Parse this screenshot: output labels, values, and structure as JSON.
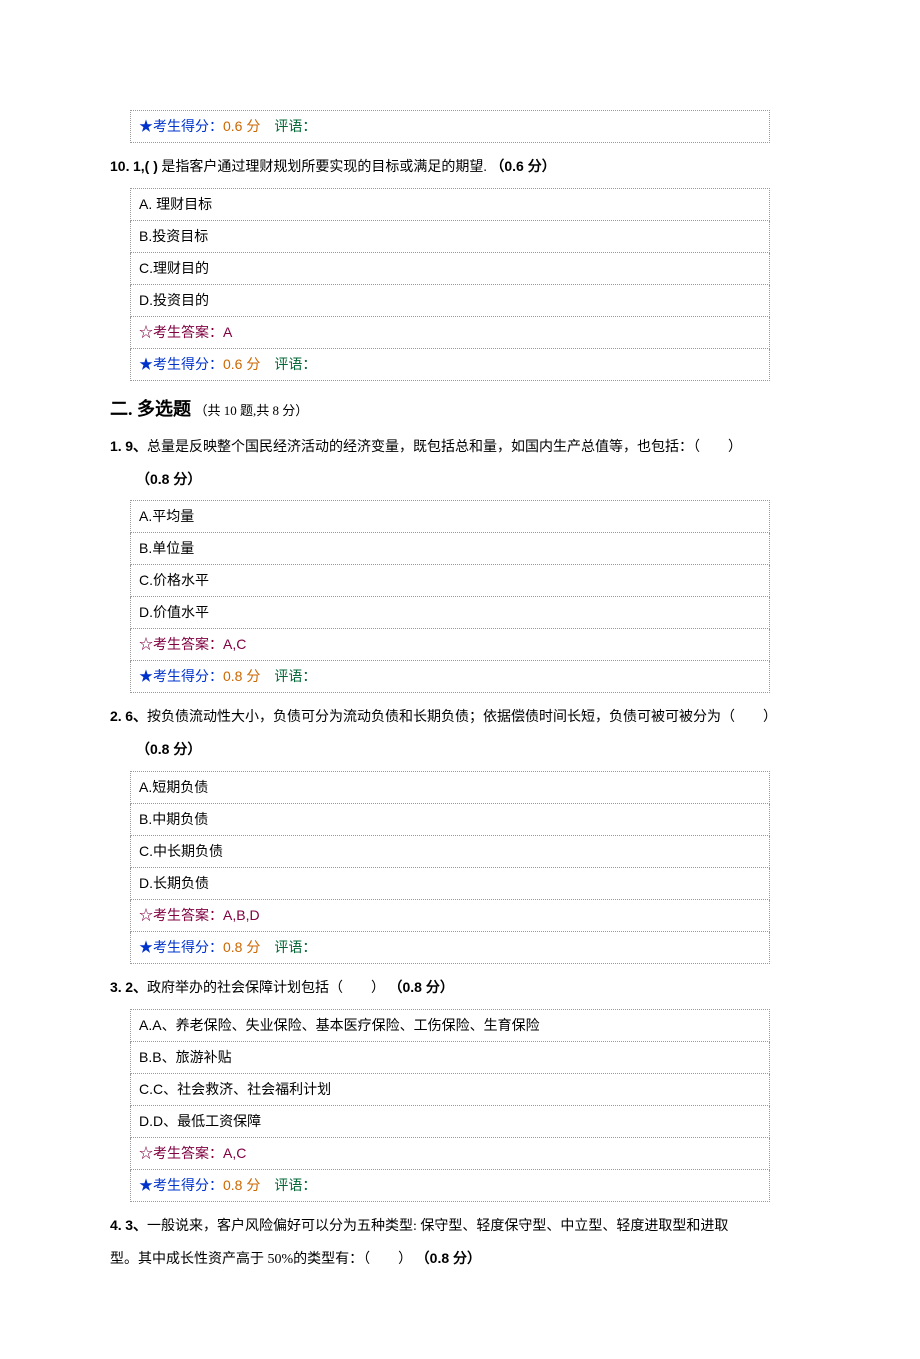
{
  "colors": {
    "text": "#000000",
    "border": "#9a9a9a",
    "answer": "#800040",
    "score_label": "#0033cc",
    "score_value": "#cc6600",
    "comment": "#006633",
    "background": "#ffffff"
  },
  "strings": {
    "star_filled": "★",
    "star_open": "☆",
    "score_prefix": "考生得分：",
    "comment_label": "评语：",
    "answer_prefix": "考生答案："
  },
  "section1_last_score": {
    "value": "0.6 分"
  },
  "q10": {
    "number": "10.",
    "subnum": "1,(   )",
    "text": "是指客户通过理财规划所要实现的目标或满足的期望.",
    "points": "（0.6 分）",
    "options": [
      {
        "letter": "A.",
        "text": " 理财目标"
      },
      {
        "letter": "B.",
        "text": "投资目标"
      },
      {
        "letter": "C.",
        "text": "理财目的"
      },
      {
        "letter": "D.",
        "text": "投资目的"
      }
    ],
    "answer": "A",
    "score": "0.6 分"
  },
  "section2": {
    "label": "二. 多选题",
    "meta": "（共 10 题,共 8 分）"
  },
  "mq1": {
    "number": "1.",
    "subnum": "9、",
    "text": "总量是反映整个国民经济活动的经济变量，既包括总和量，如国内生产总值等，也包括：（　　）",
    "points": "（0.8 分）",
    "options": [
      {
        "letter": "A.",
        "text": "平均量"
      },
      {
        "letter": "B.",
        "text": "单位量"
      },
      {
        "letter": "C.",
        "text": "价格水平"
      },
      {
        "letter": "D.",
        "text": "价值水平"
      }
    ],
    "answer": "A,C",
    "score": "0.8 分"
  },
  "mq2": {
    "number": "2.",
    "subnum": "6、",
    "text": "按负债流动性大小，负债可分为流动负债和长期负债；依据偿债时间长短，负债可被可被分为（　　）",
    "points": "（0.8 分）",
    "options": [
      {
        "letter": "A.",
        "text": "短期负债"
      },
      {
        "letter": "B.",
        "text": "中期负债"
      },
      {
        "letter": "C.",
        "text": "中长期负债"
      },
      {
        "letter": "D.",
        "text": "长期负债"
      }
    ],
    "answer": "A,B,D",
    "score": "0.8 分"
  },
  "mq3": {
    "number": "3.",
    "subnum": "2、",
    "text": "政府举办的社会保障计划包括（　　）",
    "points": "（0.8 分）",
    "options": [
      {
        "letter": "A.",
        "text": "A、养老保险、失业保险、基本医疗保险、工伤保险、生育保险"
      },
      {
        "letter": "B.",
        "text": "B、旅游补贴"
      },
      {
        "letter": "C.",
        "text": "C、社会救济、社会福利计划"
      },
      {
        "letter": "D.",
        "text": "D、最低工资保障"
      }
    ],
    "answer": "A,C",
    "score": "0.8 分"
  },
  "mq4": {
    "number": "4.",
    "subnum": "3、",
    "text_line1": "一般说来，客户风险偏好可以分为五种类型: 保守型、轻度保守型、中立型、轻度进取型和进取",
    "text_line2": "型。其中成长性资产高于 50%的类型有：（　　）",
    "points": "（0.8 分）"
  }
}
